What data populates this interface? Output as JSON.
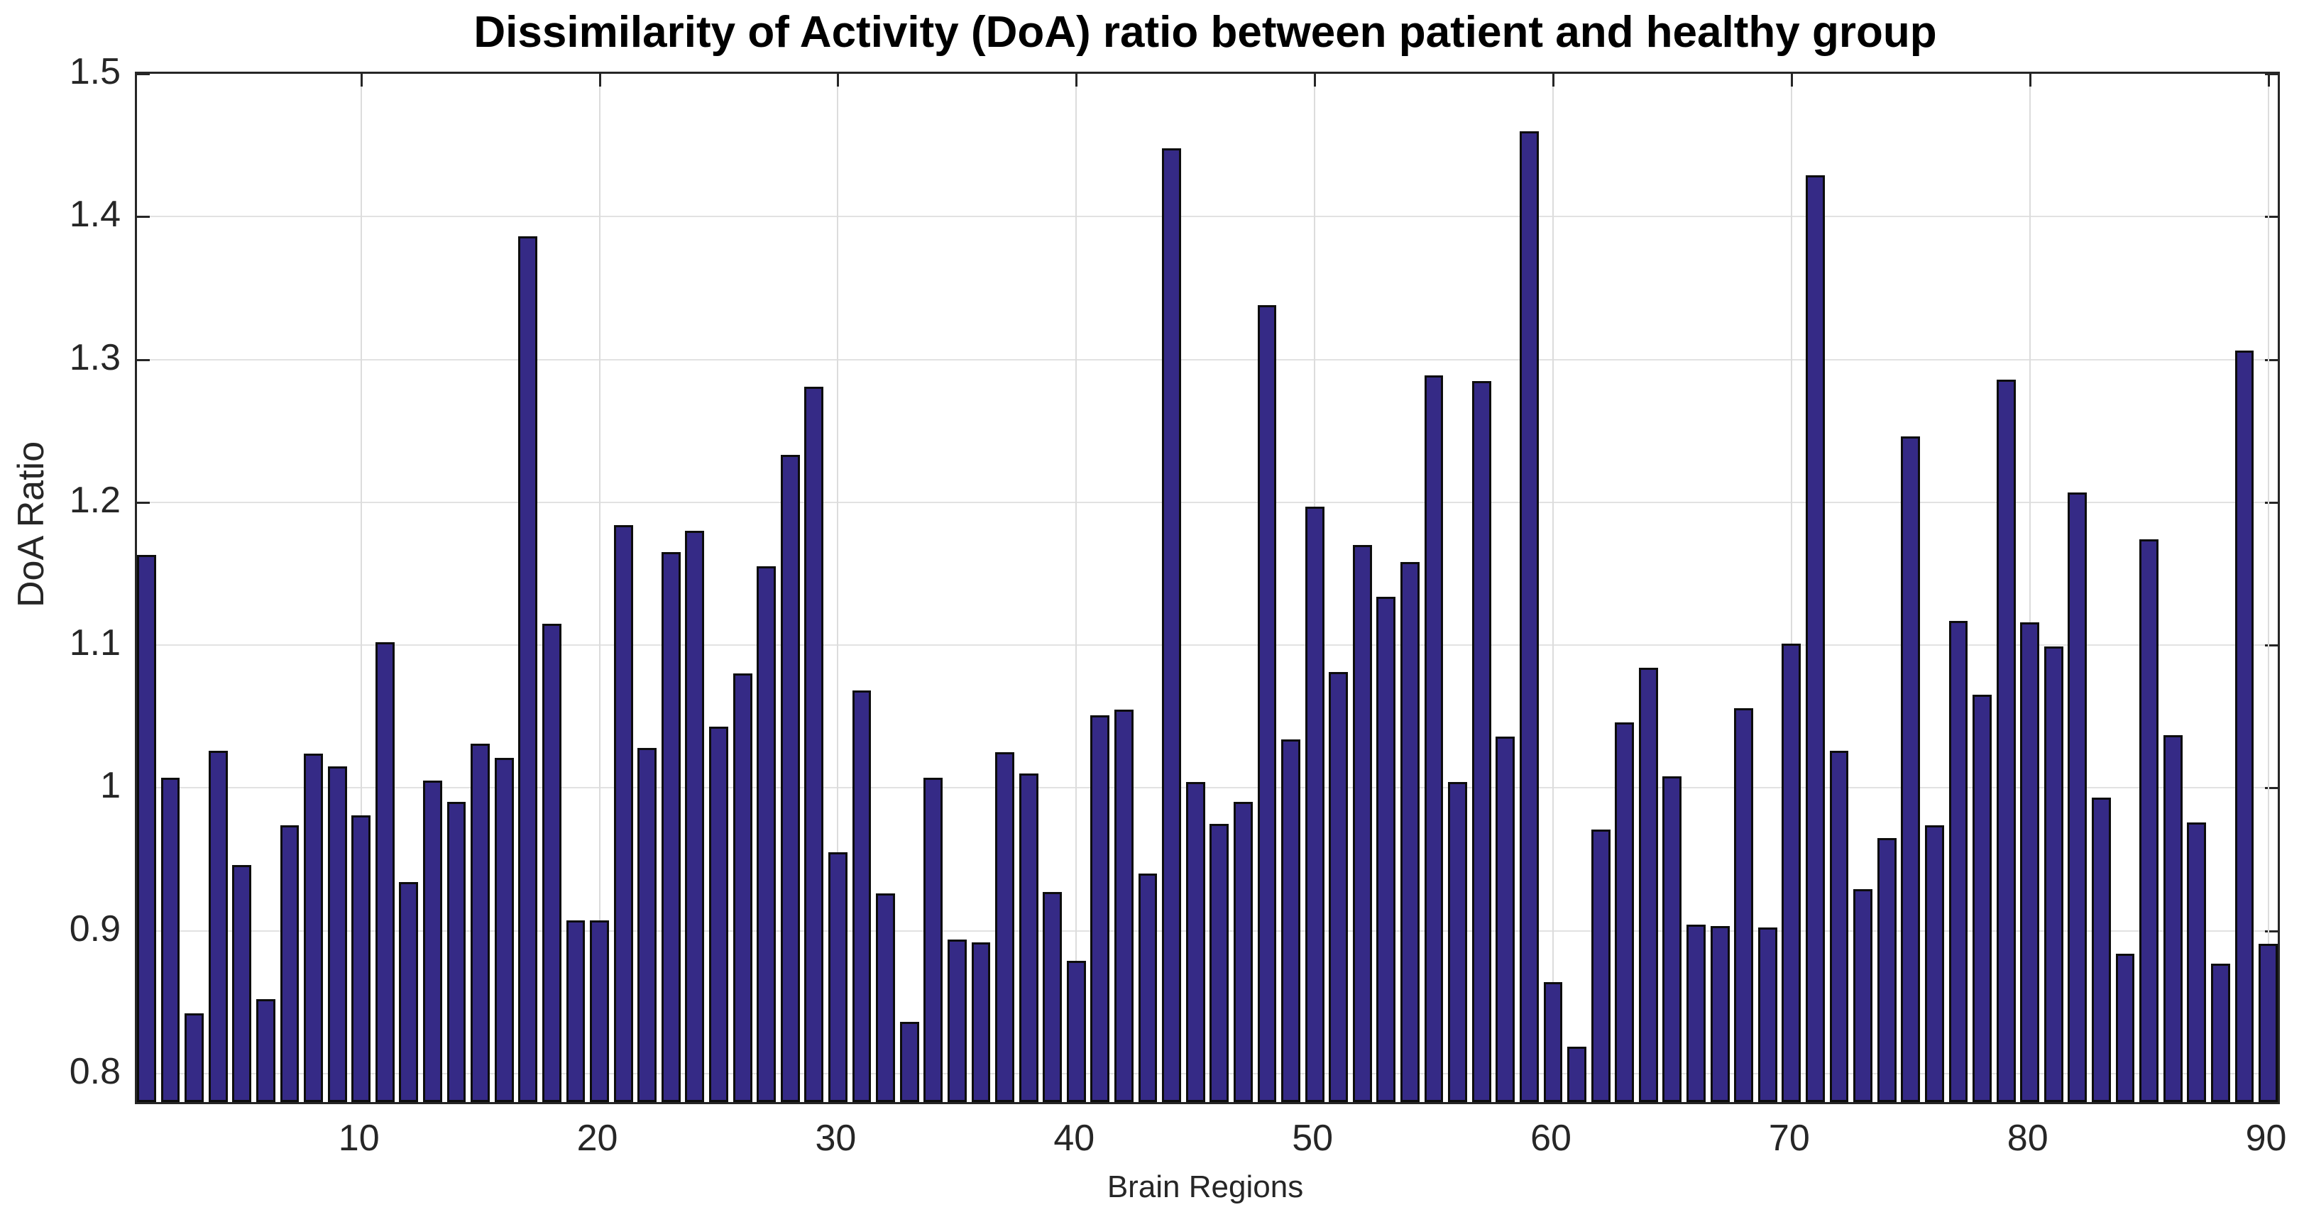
{
  "chart_data": {
    "type": "bar",
    "title": "Dissimilarity of Activity (DoA) ratio between patient and healthy group",
    "xlabel": "Brain Regions",
    "ylabel": "DoA Ratio",
    "n_bars": 90,
    "x_start": 1,
    "values": [
      1.163,
      1.007,
      0.842,
      1.026,
      0.946,
      0.852,
      0.974,
      1.024,
      1.015,
      0.981,
      1.102,
      0.934,
      1.005,
      0.99,
      1.031,
      1.021,
      1.386,
      1.115,
      0.907,
      0.907,
      1.184,
      1.028,
      1.165,
      1.18,
      1.043,
      1.08,
      1.155,
      1.233,
      1.281,
      0.955,
      1.068,
      0.926,
      0.836,
      1.007,
      0.894,
      0.892,
      1.025,
      1.01,
      0.927,
      0.879,
      1.051,
      1.055,
      0.94,
      1.448,
      1.004,
      0.975,
      0.99,
      1.338,
      1.034,
      1.197,
      1.081,
      1.17,
      1.134,
      1.158,
      1.289,
      1.004,
      1.285,
      1.036,
      1.46,
      0.864,
      0.819,
      0.971,
      1.046,
      1.084,
      1.008,
      0.904,
      0.903,
      1.056,
      0.902,
      1.101,
      1.429,
      1.026,
      0.929,
      0.965,
      1.246,
      0.974,
      1.117,
      1.065,
      1.286,
      1.116,
      1.099,
      1.207,
      0.993,
      0.884,
      1.174,
      1.037,
      0.976,
      0.877,
      1.306,
      0.891
    ],
    "ylim": [
      0.78,
      1.5
    ],
    "xlim": [
      0.6,
      90.4
    ],
    "yticks": [
      0.8,
      0.9,
      1.0,
      1.1,
      1.2,
      1.3,
      1.4,
      1.5
    ],
    "ytick_labels": [
      "0.8",
      "0.9",
      "1",
      "1.1",
      "1.2",
      "1.3",
      "1.4",
      "1.5"
    ],
    "xticks": [
      10,
      20,
      30,
      40,
      50,
      60,
      70,
      80,
      90
    ],
    "xtick_labels": [
      "10",
      "20",
      "30",
      "40",
      "50",
      "60",
      "70",
      "80",
      "90"
    ],
    "bar_color": "#352a86",
    "bar_edge_color": "#0d0d0d",
    "grid": true,
    "grid_color": "#e2e2e2",
    "axis_color": "#262626",
    "legend": null,
    "bar_width_fraction": 0.8
  }
}
